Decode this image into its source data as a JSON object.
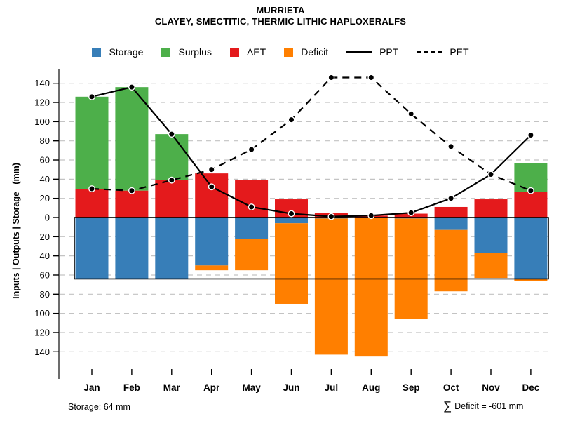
{
  "title": {
    "line1": "MURRIETA",
    "line2": "CLAYEY, SMECTITIC, THERMIC LITHIC HAPLOXERALFS"
  },
  "legend": [
    {
      "label": "Storage",
      "swatch": "square",
      "color": "#377EB8"
    },
    {
      "label": "Surplus",
      "swatch": "square",
      "color": "#4DAF4A"
    },
    {
      "label": "AET",
      "swatch": "square",
      "color": "#E41A1C"
    },
    {
      "label": "Deficit",
      "swatch": "square",
      "color": "#FF7F00"
    },
    {
      "label": "PPT",
      "swatch": "solid-line",
      "color": "#000000"
    },
    {
      "label": "PET",
      "swatch": "dashed-line",
      "color": "#000000"
    }
  ],
  "footer": {
    "storage_text": "Storage: 64 mm",
    "sigma": "∑",
    "deficit_text": "Deficit = -601 mm"
  },
  "chart_data": {
    "type": "bar+line",
    "title": "MURRIETA",
    "subtitle": "CLAYEY, SMECTITIC, THERMIC LITHIC HAPLOXERALFS",
    "categories": [
      "Jan",
      "Feb",
      "Mar",
      "Apr",
      "May",
      "Jun",
      "Jul",
      "Aug",
      "Sep",
      "Oct",
      "Nov",
      "Dec"
    ],
    "ylabel": "Inputs | Outputs | Storage   (mm)",
    "ylim": [
      -168,
      156
    ],
    "yticks": [
      140,
      120,
      100,
      80,
      60,
      40,
      20,
      0,
      -20,
      -40,
      -60,
      -80,
      -100,
      -120,
      -140
    ],
    "ytick_labels": [
      "140",
      "120",
      "100",
      "80",
      "60",
      "40",
      "20",
      "0",
      "20",
      "40",
      "60",
      "80",
      "100",
      "120",
      "140"
    ],
    "grid": "dashed horizontal gridlines every 20 mm, zero line solid black",
    "legend_position": "top center",
    "storage_capacity_mm": 64,
    "sum_deficit_mm": -601,
    "series": [
      {
        "name": "AET",
        "type": "bar",
        "direction": "up",
        "color": "#E41A1C",
        "values": [
          30,
          28,
          39,
          46,
          39,
          19,
          5,
          2,
          4,
          11,
          19,
          27
        ]
      },
      {
        "name": "Surplus",
        "type": "bar",
        "direction": "up",
        "stack_on": "AET",
        "color": "#4DAF4A",
        "values": [
          96,
          108,
          48,
          0,
          0,
          0,
          0,
          0,
          0,
          0,
          0,
          30
        ]
      },
      {
        "name": "Storage",
        "type": "bar",
        "direction": "down",
        "color": "#377EB8",
        "values": [
          64,
          64,
          64,
          50,
          22,
          6,
          1,
          0,
          1,
          13,
          37,
          64
        ]
      },
      {
        "name": "Deficit",
        "type": "bar",
        "direction": "down",
        "stack_on": "Storage",
        "color": "#FF7F00",
        "values": [
          0,
          0,
          0,
          5,
          33,
          84,
          142,
          145,
          105,
          64,
          26,
          2
        ]
      },
      {
        "name": "PPT",
        "type": "line",
        "style": "solid",
        "marker": "filled-circle",
        "color": "#000000",
        "values": [
          126,
          136,
          87,
          32,
          11,
          4,
          1,
          2,
          5,
          20,
          45,
          86
        ]
      },
      {
        "name": "PET",
        "type": "line",
        "style": "dashed",
        "marker": "filled-circle",
        "color": "#000000",
        "values": [
          30,
          28,
          39,
          50,
          71,
          102,
          146,
          146,
          108,
          74,
          45,
          28
        ]
      }
    ]
  }
}
